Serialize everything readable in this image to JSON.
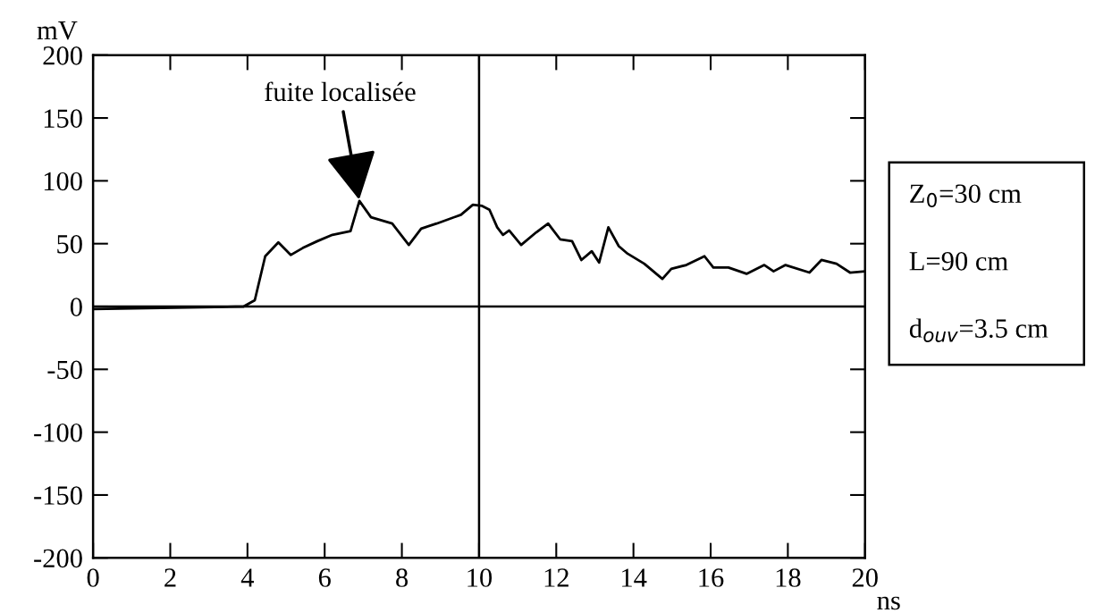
{
  "chart_data": {
    "type": "line",
    "xlabel": "ns",
    "ylabel": "mV",
    "x": [
      0,
      3.9,
      4.19,
      4.46,
      4.8,
      5.12,
      5.43,
      5.81,
      6.2,
      6.67,
      6.9,
      7.2,
      7.75,
      8.18,
      8.5,
      8.9,
      9.53,
      9.84,
      10.08,
      10.27,
      10.47,
      10.62,
      10.78,
      11.09,
      11.48,
      11.79,
      12.1,
      12.41,
      12.65,
      12.92,
      13.11,
      13.35,
      13.62,
      13.85,
      14.28,
      14.75,
      14.98,
      15.37,
      15.84,
      16.07,
      16.46,
      16.93,
      17.39,
      17.63,
      17.94,
      18.56,
      18.87,
      19.26,
      19.61,
      20
    ],
    "series": [
      {
        "color": "#000000",
        "values": [
          -2,
          0,
          5,
          40,
          51,
          41,
          46.5,
          52,
          57,
          60,
          84,
          71,
          66,
          49,
          62,
          66,
          73,
          81,
          80,
          77,
          63,
          57,
          60.5,
          49,
          59,
          66,
          53.5,
          52,
          37,
          44,
          35,
          63,
          48,
          42,
          34,
          22,
          30,
          33,
          40,
          31,
          31,
          26,
          33,
          28,
          33,
          27,
          37,
          34,
          27,
          28
        ]
      }
    ],
    "xlim": [
      0,
      20
    ],
    "xticks": [
      0,
      2,
      4,
      6,
      8,
      10,
      12,
      14,
      16,
      18,
      20
    ],
    "ylim": [
      -200,
      200
    ],
    "yticks": [
      -200,
      -150,
      -100,
      -50,
      0,
      50,
      100,
      150,
      200
    ],
    "ref_lines": [
      {
        "axis": "x",
        "value": 10,
        "color": "#000000"
      },
      {
        "axis": "y",
        "value": 0,
        "color": "#000000"
      }
    ],
    "grid": false,
    "legend": false,
    "marker": "none",
    "line_style": "solid",
    "annotations": [
      {
        "text": "fuite localisée",
        "x": 6.9,
        "y": 84
      },
      "Z$_{0}$=30 cm",
      "L=90 cm",
      "d$_{ouv}$=3.5 cm"
    ]
  }
}
